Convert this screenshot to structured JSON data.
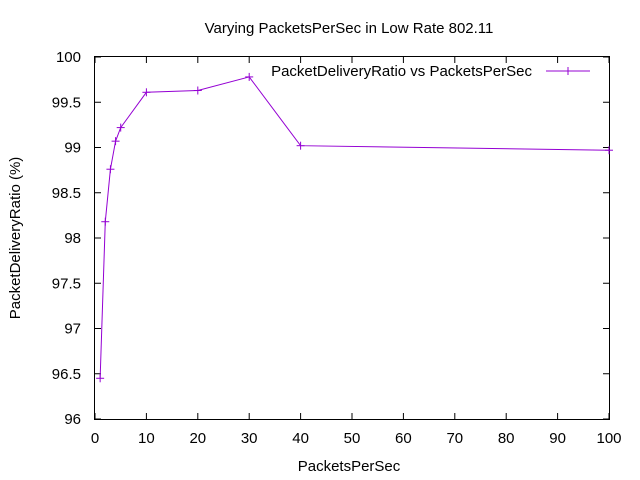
{
  "chart_data": {
    "type": "line",
    "title": "Varying PacketsPerSec in Low Rate 802.11",
    "xlabel": "PacketsPerSec",
    "ylabel": "PacketDeliveryRatio (%)",
    "xlim": [
      0,
      100
    ],
    "ylim": [
      96,
      100
    ],
    "x_ticks": [
      "0",
      "10",
      "20",
      "30",
      "40",
      "50",
      "60",
      "70",
      "80",
      "90",
      "100"
    ],
    "y_ticks": [
      "96",
      "96.5",
      "97",
      "97.5",
      "98",
      "98.5",
      "99",
      "99.5",
      "100"
    ],
    "x_tick_values": [
      0,
      10,
      20,
      30,
      40,
      50,
      60,
      70,
      80,
      90,
      100
    ],
    "y_tick_values": [
      96,
      96.5,
      97,
      97.5,
      98,
      98.5,
      99,
      99.5,
      100
    ],
    "grid": false,
    "legend_position": "top-right",
    "series": [
      {
        "name": "PacketDeliveryRatio vs PacketsPerSec",
        "color": "#9400d3",
        "marker": "plus",
        "x": [
          1,
          2,
          3,
          4,
          5,
          10,
          20,
          30,
          40,
          100
        ],
        "y": [
          96.45,
          98.18,
          98.76,
          99.07,
          99.22,
          99.61,
          99.63,
          99.78,
          99.02,
          98.97
        ]
      }
    ]
  }
}
